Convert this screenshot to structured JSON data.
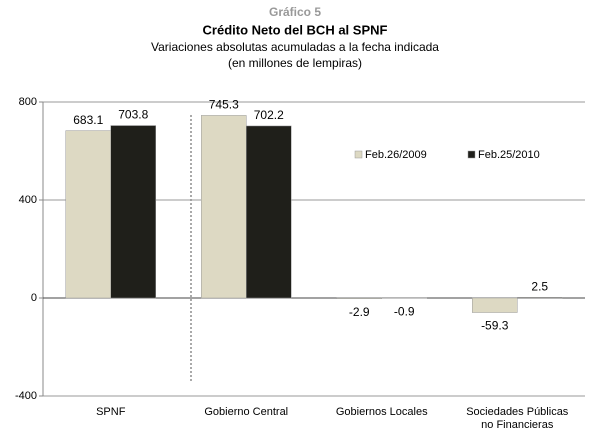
{
  "chart_data": {
    "type": "bar",
    "supertitle": "Gráfico 5",
    "title": "Crédito Neto del BCH al SPNF",
    "subtitle": [
      "Variaciones absolutas acumuladas a la fecha indicada",
      "(en millones de lempiras)"
    ],
    "categories": [
      "SPNF",
      "Gobierno Central",
      "Gobiernos Locales",
      "Sociedades Públicas\nno Financieras"
    ],
    "series": [
      {
        "name": "Feb.26/2009",
        "color": "#ddd9c3",
        "values": [
          683.1,
          745.3,
          -2.9,
          -59.3
        ]
      },
      {
        "name": "Feb.25/2010",
        "color": "#1f1f1a",
        "values": [
          703.8,
          702.2,
          -0.9,
          2.5
        ]
      }
    ],
    "ylim": [
      -400,
      800
    ],
    "yticks": [
      -400,
      0,
      400,
      800
    ],
    "grid": true,
    "legend": "top-right"
  }
}
